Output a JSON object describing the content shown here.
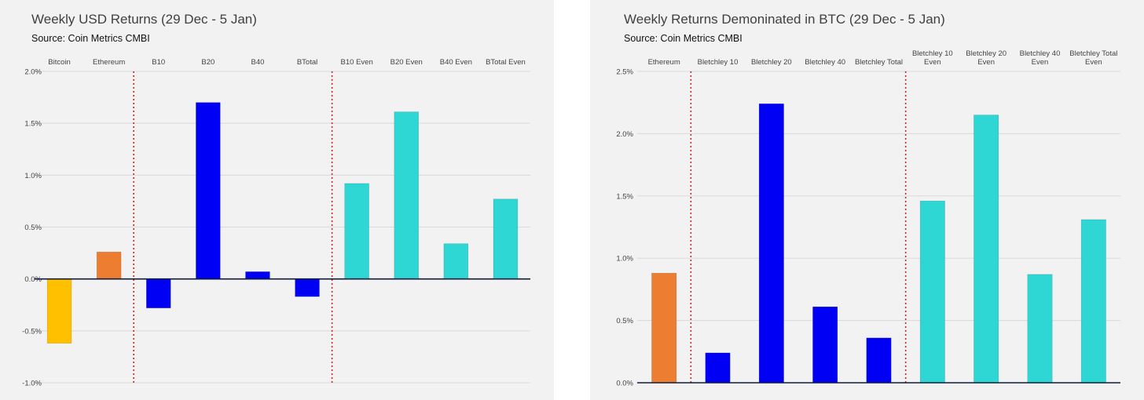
{
  "colors": {
    "bitcoin": "#FFC000",
    "ethereum": "#ED7D31",
    "blue": "#0000F5",
    "teal": "#2ED6D4",
    "grid": "#d9d9d9",
    "axis": "#0d1b3a",
    "divider": "#d42020"
  },
  "chart_data": [
    {
      "type": "bar",
      "title": "Weekly USD Returns (29 Dec - 5 Jan)",
      "subtitle": "Source: Coin Metrics CMBI",
      "categories": [
        "Bitcoin",
        "Ethereum",
        "B10",
        "B20",
        "B40",
        "BTotal",
        "B10 Even",
        "B20 Even",
        "B40 Even",
        "BTotal Even"
      ],
      "values": [
        -0.62,
        0.26,
        -0.28,
        1.7,
        0.07,
        -0.17,
        0.92,
        1.61,
        0.34,
        0.77
      ],
      "bar_colors": [
        "bitcoin",
        "ethereum",
        "blue",
        "blue",
        "blue",
        "blue",
        "teal",
        "teal",
        "teal",
        "teal"
      ],
      "yticks": [
        "2.0%",
        "1.5%",
        "1.0%",
        "0.5%",
        "0.0%",
        "-0.5%",
        "-1.0%"
      ],
      "ylim": [
        -1.0,
        2.0
      ],
      "value_unit": "%",
      "dividers_after_index": [
        1,
        5
      ],
      "grid": true,
      "category_labels_position": "top"
    },
    {
      "type": "bar",
      "title": "Weekly Returns Demoninated in BTC (29 Dec - 5 Jan)",
      "subtitle": "Source: Coin Metrics CMBI",
      "categories": [
        "Ethereum",
        "Bletchley 10",
        "Bletchley 20",
        "Bletchley 40",
        "Bletchley Total",
        "Bletchley 10\nEven",
        "Bletchley 20\nEven",
        "Bletchley 40\nEven",
        "Bletchley Total\nEven"
      ],
      "values": [
        0.88,
        0.24,
        2.24,
        0.61,
        0.36,
        1.46,
        2.15,
        0.87,
        1.31
      ],
      "bar_colors": [
        "ethereum",
        "blue",
        "blue",
        "blue",
        "blue",
        "teal",
        "teal",
        "teal",
        "teal"
      ],
      "yticks": [
        "2.5%",
        "2.0%",
        "1.5%",
        "1.0%",
        "0.5%",
        "0.0%"
      ],
      "ylim": [
        0.0,
        2.5
      ],
      "value_unit": "%",
      "dividers_after_index": [
        0,
        4
      ],
      "grid": true,
      "category_labels_position": "top"
    }
  ]
}
